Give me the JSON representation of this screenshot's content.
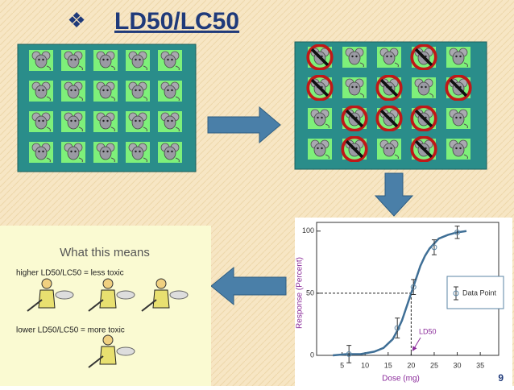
{
  "title": {
    "bullet": "❖",
    "text": "LD50/LC50"
  },
  "meaning_panel": {
    "heading": "What this means",
    "line_1": "higher LD50/LC50 = less toxic",
    "line_2": "lower LD50/LC50 = more toxic"
  },
  "page_number": "9",
  "chart_data": {
    "type": "scatter",
    "xlabel": "Dose (mg)",
    "ylabel": "Response (Percent)",
    "xlim": [
      0,
      39
    ],
    "ylim": [
      0,
      107
    ],
    "xticks": [
      5,
      10,
      15,
      20,
      25,
      30,
      35
    ],
    "yticks": [
      0,
      50,
      100
    ],
    "series": [
      {
        "name": "Data Point",
        "color": "#5b86a6",
        "x": [
          6.5,
          17,
          20.5,
          25,
          30
        ],
        "values": [
          1,
          22,
          55,
          87,
          99
        ],
        "errors": [
          7,
          8,
          6,
          6,
          5
        ]
      }
    ],
    "curve": {
      "color": "#3f6f96",
      "x": [
        3,
        6,
        9,
        12,
        14,
        16,
        17,
        18,
        19,
        20,
        21,
        22,
        23,
        24,
        26,
        28,
        30,
        32
      ],
      "values": [
        0,
        1,
        1,
        3,
        6,
        13,
        20,
        28,
        39,
        50,
        61,
        72,
        80,
        86,
        94,
        97,
        99,
        100
      ]
    },
    "annotation": "LD50",
    "reference_x": 20,
    "reference_y": 50
  }
}
